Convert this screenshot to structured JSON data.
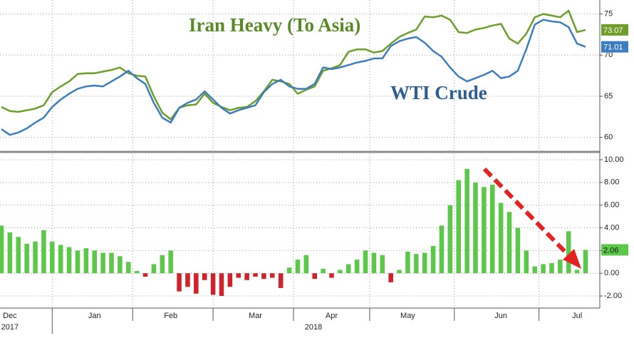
{
  "chart_data": [
    {
      "type": "line",
      "ylim": [
        58.5,
        76.7
      ],
      "yticks": [
        60,
        65,
        70,
        75
      ],
      "grid": true,
      "series": [
        {
          "name": "Iran Heavy (To Asia)",
          "color": "#6e9e2a",
          "text_color": "#5a8a26",
          "values": [
            63.7,
            63.2,
            63.1,
            63.3,
            63.5,
            63.9,
            65.5,
            66.2,
            66.8,
            67.7,
            67.8,
            67.8,
            68.0,
            68.2,
            68.5,
            67.8,
            67.5,
            67.4,
            65.0,
            63.0,
            62.2,
            63.6,
            63.9,
            64.0,
            65.3,
            64.2,
            63.7,
            63.3,
            63.6,
            63.7,
            64.4,
            65.6,
            67.0,
            66.8,
            66.5,
            65.3,
            65.8,
            66.2,
            68.1,
            68.4,
            68.8,
            70.4,
            70.7,
            70.7,
            70.3,
            70.5,
            71.4,
            72.2,
            72.7,
            73.1,
            74.7,
            74.6,
            74.8,
            74.3,
            72.8,
            72.7,
            73.1,
            73.3,
            73.6,
            73.8,
            72.0,
            71.4,
            72.6,
            74.6,
            75.0,
            74.8,
            74.6,
            75.4,
            72.8,
            73.07
          ]
        },
        {
          "name": "WTI Crude",
          "color": "#3c7dbf",
          "text_color": "#2d5e93",
          "values": [
            61.0,
            60.3,
            60.6,
            61.1,
            61.8,
            62.4,
            63.7,
            64.6,
            65.3,
            65.9,
            66.2,
            66.3,
            66.2,
            66.8,
            67.4,
            68.1,
            67.2,
            66.5,
            64.2,
            62.4,
            61.8,
            63.6,
            64.2,
            64.6,
            65.6,
            64.6,
            63.6,
            62.9,
            63.3,
            63.6,
            63.9,
            65.5,
            66.5,
            67.0,
            66.2,
            65.9,
            65.9,
            66.5,
            68.5,
            68.3,
            68.5,
            68.8,
            69.1,
            69.3,
            69.6,
            69.6,
            71.1,
            71.7,
            72.0,
            72.2,
            71.5,
            70.5,
            69.8,
            68.5,
            67.4,
            66.8,
            67.2,
            67.6,
            68.1,
            67.2,
            67.4,
            68.1,
            70.7,
            73.7,
            74.3,
            74.1,
            74.0,
            73.4,
            71.4,
            71.01
          ]
        }
      ]
    },
    {
      "type": "bar",
      "categories": [
        null,
        "Dec",
        null,
        null,
        null,
        null,
        null,
        null,
        null,
        null,
        null,
        "Jan",
        null,
        null,
        null,
        null,
        null,
        null,
        null,
        null,
        "Feb",
        null,
        null,
        null,
        null,
        null,
        null,
        null,
        null,
        null,
        "Mar",
        null,
        null,
        null,
        null,
        null,
        null,
        null,
        null,
        "Apr",
        null,
        null,
        null,
        null,
        null,
        null,
        null,
        null,
        "May",
        null,
        null,
        null,
        null,
        null,
        null,
        null,
        null,
        null,
        null,
        "Jun",
        null,
        null,
        null,
        null,
        null,
        null,
        null,
        null,
        "Jul",
        null
      ],
      "year_labels": [
        "2017",
        "2018"
      ],
      "positive_color": "#5cc84a",
      "negative_color": "#d0222a",
      "ylim": [
        -2.94,
        10.44
      ],
      "yticks": [
        {
          "value": 10,
          "label": "10.00"
        },
        {
          "value": 8,
          "label": "8.00"
        },
        {
          "value": 6,
          "label": "6.00"
        },
        {
          "value": 4,
          "label": "4.00"
        },
        {
          "value": 2,
          "label": "2.00"
        },
        {
          "value": 0,
          "label": "0.00"
        },
        {
          "value": -2,
          "label": "-2.00"
        }
      ],
      "grid": true,
      "values": [
        4.2,
        3.6,
        3.2,
        2.6,
        2.8,
        3.8,
        2.8,
        2.5,
        2.3,
        2.0,
        2.2,
        2.0,
        1.8,
        1.8,
        1.5,
        1.0,
        0.2,
        -0.3,
        0.8,
        1.6,
        2.0,
        -1.6,
        -1.2,
        -1.8,
        -0.6,
        -1.9,
        -2.0,
        -1.2,
        -0.4,
        -0.6,
        -0.3,
        -0.5,
        -0.4,
        -1.3,
        0.5,
        1.2,
        1.6,
        -0.5,
        0.4,
        -0.4,
        0.3,
        0.8,
        1.2,
        2.0,
        1.8,
        1.6,
        -0.8,
        0.3,
        1.9,
        1.7,
        1.8,
        2.4,
        4.2,
        6.0,
        8.2,
        9.2,
        8.0,
        7.6,
        7.8,
        6.2,
        5.4,
        4.0,
        2.0,
        0.6,
        0.8,
        0.9,
        1.2,
        3.7,
        0.3,
        2.06
      ]
    }
  ]
}
